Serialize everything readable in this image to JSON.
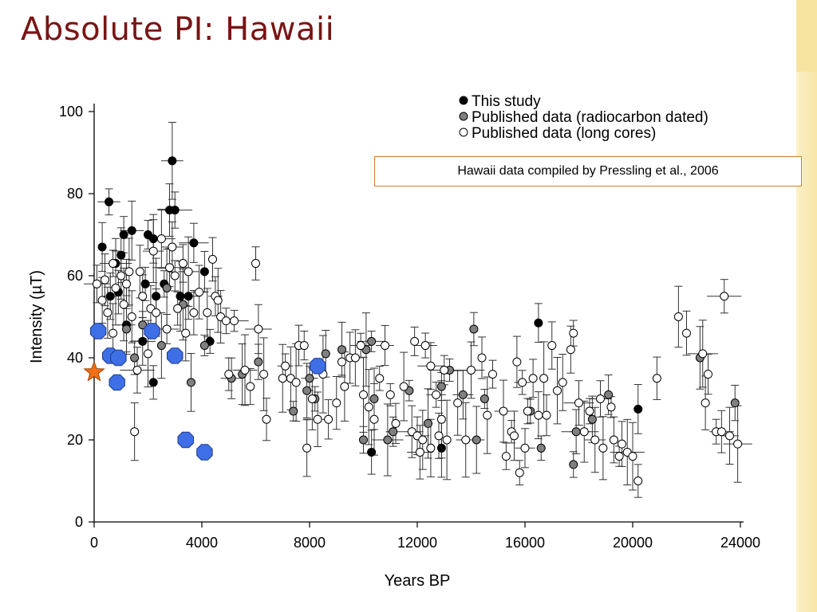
{
  "slide": {
    "title": "Absolute PI: Hawaii",
    "annotation": "Hawaii data compiled by Pressling et al., 2006"
  },
  "colors": {
    "title": "#7a1414",
    "this_study": "#000000",
    "radiocarbon": "#808080",
    "long_cores": "#ffffff",
    "blue_markers": "#3f6fe6",
    "star": "#f07018",
    "annotation_border": "#e07a2a"
  },
  "chart_data": {
    "type": "scatter",
    "xlabel": "Years BP",
    "ylabel": "Intensity (µT)",
    "xlim": [
      0,
      24000
    ],
    "ylim": [
      0,
      100
    ],
    "xticks": [
      0,
      4000,
      8000,
      12000,
      16000,
      20000,
      24000
    ],
    "yticks": [
      0,
      20,
      40,
      60,
      80,
      100
    ],
    "grid": false,
    "legend_position": "top-right",
    "series": [
      {
        "name": "This study",
        "marker": "filled-black-circle",
        "points": [
          [
            300,
            67
          ],
          [
            550,
            78
          ],
          [
            800,
            63
          ],
          [
            1000,
            65
          ],
          [
            1100,
            70
          ],
          [
            1400,
            71
          ],
          [
            1900,
            58
          ],
          [
            2000,
            70
          ],
          [
            2200,
            69
          ],
          [
            2300,
            55
          ],
          [
            2600,
            58
          ],
          [
            2900,
            88
          ],
          [
            2800,
            76
          ],
          [
            3000,
            76
          ],
          [
            3500,
            55
          ],
          [
            3700,
            68
          ],
          [
            4100,
            61
          ],
          [
            4300,
            44
          ],
          [
            2200,
            34
          ],
          [
            1800,
            44
          ],
          [
            900,
            56
          ],
          [
            1200,
            48
          ],
          [
            600,
            55
          ],
          [
            10300,
            17
          ],
          [
            12900,
            18
          ],
          [
            16500,
            48.5
          ],
          [
            20200,
            27.5
          ],
          [
            3200,
            55
          ]
        ]
      },
      {
        "name": "Published data (radiocarbon dated)",
        "marker": "filled-gray-circle",
        "points": [
          [
            1200,
            47
          ],
          [
            1500,
            40
          ],
          [
            1800,
            48
          ],
          [
            2500,
            43
          ],
          [
            2700,
            57
          ],
          [
            3300,
            53
          ],
          [
            3600,
            34
          ],
          [
            4100,
            43
          ],
          [
            5100,
            35
          ],
          [
            5500,
            36
          ],
          [
            6100,
            39
          ],
          [
            7400,
            27
          ],
          [
            7900,
            32
          ],
          [
            8200,
            30
          ],
          [
            8600,
            41
          ],
          [
            9200,
            42
          ],
          [
            10000,
            20
          ],
          [
            10100,
            42
          ],
          [
            10300,
            44
          ],
          [
            10400,
            30
          ],
          [
            10900,
            20
          ],
          [
            11100,
            22
          ],
          [
            11700,
            32
          ],
          [
            12400,
            24
          ],
          [
            12900,
            33
          ],
          [
            13200,
            37
          ],
          [
            13700,
            31
          ],
          [
            14100,
            47
          ],
          [
            14200,
            20
          ],
          [
            14500,
            30
          ],
          [
            16600,
            18
          ],
          [
            17800,
            14
          ],
          [
            17900,
            22
          ],
          [
            18500,
            25
          ],
          [
            19100,
            31
          ],
          [
            22500,
            40
          ],
          [
            23800,
            29
          ],
          [
            16200,
            27
          ],
          [
            8000,
            35
          ]
        ]
      },
      {
        "name": "Published data (long cores)",
        "marker": "open-circle",
        "points": [
          [
            100,
            58
          ],
          [
            300,
            54
          ],
          [
            400,
            59
          ],
          [
            500,
            51
          ],
          [
            700,
            63
          ],
          [
            700,
            46
          ],
          [
            800,
            57
          ],
          [
            1000,
            60
          ],
          [
            1100,
            53
          ],
          [
            1200,
            58
          ],
          [
            1300,
            61
          ],
          [
            1400,
            50
          ],
          [
            1500,
            22
          ],
          [
            1600,
            37
          ],
          [
            1700,
            61
          ],
          [
            1800,
            55
          ],
          [
            2000,
            41
          ],
          [
            2100,
            52
          ],
          [
            2200,
            66
          ],
          [
            2300,
            51
          ],
          [
            2500,
            69
          ],
          [
            2700,
            47
          ],
          [
            2800,
            62
          ],
          [
            2900,
            67
          ],
          [
            3000,
            60
          ],
          [
            3100,
            52
          ],
          [
            3300,
            63
          ],
          [
            3400,
            46
          ],
          [
            3500,
            61
          ],
          [
            3700,
            51
          ],
          [
            3900,
            56
          ],
          [
            4200,
            51
          ],
          [
            4400,
            64
          ],
          [
            4500,
            55
          ],
          [
            4600,
            54
          ],
          [
            4700,
            50
          ],
          [
            4900,
            49
          ],
          [
            5000,
            36
          ],
          [
            5200,
            49
          ],
          [
            5600,
            37
          ],
          [
            5800,
            33
          ],
          [
            6000,
            63
          ],
          [
            6100,
            47
          ],
          [
            6300,
            36
          ],
          [
            6400,
            25
          ],
          [
            7000,
            35
          ],
          [
            7100,
            38
          ],
          [
            7300,
            35
          ],
          [
            7500,
            34
          ],
          [
            7600,
            43
          ],
          [
            7800,
            43
          ],
          [
            7900,
            18
          ],
          [
            8100,
            30
          ],
          [
            8300,
            25
          ],
          [
            8500,
            36
          ],
          [
            8700,
            25
          ],
          [
            9000,
            29
          ],
          [
            9200,
            39
          ],
          [
            9300,
            33
          ],
          [
            9500,
            40
          ],
          [
            9700,
            40
          ],
          [
            9900,
            43
          ],
          [
            10000,
            31
          ],
          [
            10200,
            28
          ],
          [
            10400,
            25
          ],
          [
            10600,
            35
          ],
          [
            10800,
            43
          ],
          [
            11000,
            31
          ],
          [
            11200,
            24
          ],
          [
            11500,
            33
          ],
          [
            11800,
            22
          ],
          [
            11900,
            44
          ],
          [
            12000,
            21
          ],
          [
            12100,
            17
          ],
          [
            12200,
            20
          ],
          [
            12300,
            43
          ],
          [
            12500,
            38
          ],
          [
            12700,
            31
          ],
          [
            12800,
            21
          ],
          [
            12900,
            25
          ],
          [
            13000,
            37
          ],
          [
            13100,
            20
          ],
          [
            13500,
            29
          ],
          [
            13800,
            20
          ],
          [
            14000,
            37
          ],
          [
            14400,
            40
          ],
          [
            14600,
            26
          ],
          [
            14800,
            36
          ],
          [
            15200,
            27
          ],
          [
            15300,
            16
          ],
          [
            15500,
            22
          ],
          [
            15600,
            21
          ],
          [
            15700,
            39
          ],
          [
            15800,
            12
          ],
          [
            15900,
            34
          ],
          [
            16000,
            18
          ],
          [
            16100,
            27
          ],
          [
            16300,
            35
          ],
          [
            16500,
            26
          ],
          [
            16700,
            35
          ],
          [
            16800,
            26
          ],
          [
            17000,
            43
          ],
          [
            17200,
            32
          ],
          [
            17400,
            34
          ],
          [
            17700,
            42
          ],
          [
            17800,
            46
          ],
          [
            18000,
            29
          ],
          [
            18200,
            22
          ],
          [
            18400,
            27
          ],
          [
            18600,
            20
          ],
          [
            18800,
            30
          ],
          [
            18900,
            18
          ],
          [
            19200,
            28
          ],
          [
            19300,
            20
          ],
          [
            19500,
            16
          ],
          [
            19600,
            19
          ],
          [
            19800,
            17
          ],
          [
            20000,
            16
          ],
          [
            20200,
            10
          ],
          [
            20900,
            35
          ],
          [
            21700,
            50
          ],
          [
            22000,
            46
          ],
          [
            22600,
            41
          ],
          [
            22700,
            29
          ],
          [
            22800,
            36
          ],
          [
            23100,
            22
          ],
          [
            23300,
            22
          ],
          [
            23400,
            55
          ],
          [
            23600,
            21
          ],
          [
            23900,
            19
          ],
          [
            12500,
            18
          ]
        ]
      },
      {
        "name": "",
        "marker": "blue-octagon",
        "points": [
          [
            150,
            46.5
          ],
          [
            600,
            40.5
          ],
          [
            900,
            40
          ],
          [
            850,
            34
          ],
          [
            2150,
            46.5
          ],
          [
            3000,
            40.5
          ],
          [
            3400,
            20
          ],
          [
            4100,
            17
          ],
          [
            8300,
            38
          ]
        ]
      },
      {
        "name": "",
        "marker": "orange-star",
        "points": [
          [
            0,
            36.5
          ]
        ]
      }
    ]
  }
}
